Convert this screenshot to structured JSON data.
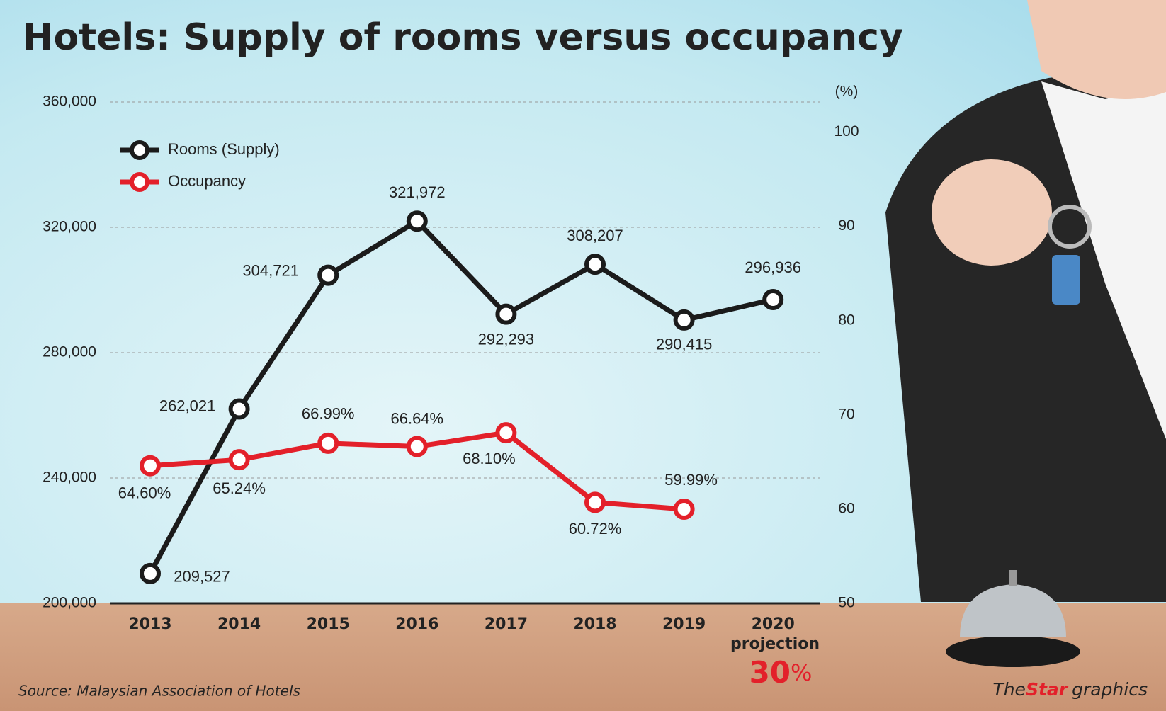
{
  "chart_data": {
    "type": "line",
    "title": "Hotels: Supply of rooms versus occupancy",
    "categories": [
      "2013",
      "2014",
      "2015",
      "2016",
      "2017",
      "2018",
      "2019",
      "2020"
    ],
    "series": [
      {
        "name": "Rooms (Supply)",
        "color": "#1b1b1b",
        "axis": "y",
        "values": [
          209527,
          262021,
          304721,
          321972,
          292293,
          308207,
          290415,
          296936
        ],
        "value_labels": [
          "209,527",
          "262,021",
          "304,721",
          "321,972",
          "292,293",
          "308,207",
          "290,415",
          "296,936"
        ]
      },
      {
        "name": "Occupancy",
        "color": "#e3202a",
        "axis": "y2",
        "values": [
          64.6,
          65.24,
          66.99,
          66.64,
          68.1,
          60.72,
          59.99,
          null
        ],
        "value_labels": [
          "64.60%",
          "65.24%",
          "66.99%",
          "66.64%",
          "68.10%",
          "60.72%",
          "59.99%",
          null
        ]
      }
    ],
    "ylim": [
      200000,
      360000
    ],
    "yticks": [
      {
        "value": 200000,
        "label": "200,000"
      },
      {
        "value": 240000,
        "label": "240,000"
      },
      {
        "value": 280000,
        "label": "280,000"
      },
      {
        "value": 320000,
        "label": "320,000"
      },
      {
        "value": 360000,
        "label": "360,000"
      }
    ],
    "y2lim": [
      50,
      103.2
    ],
    "y2ticks": [
      50,
      60,
      70,
      80,
      90,
      100
    ],
    "y2label": "(%)",
    "grid": true,
    "legend": "upper left",
    "annotations": {
      "projection": "projection",
      "projection_value": "30",
      "projection_unit": "%"
    },
    "source": "Source: Malaysian Association of Hotels",
    "brand": [
      "The",
      "Star",
      "graphics"
    ]
  }
}
